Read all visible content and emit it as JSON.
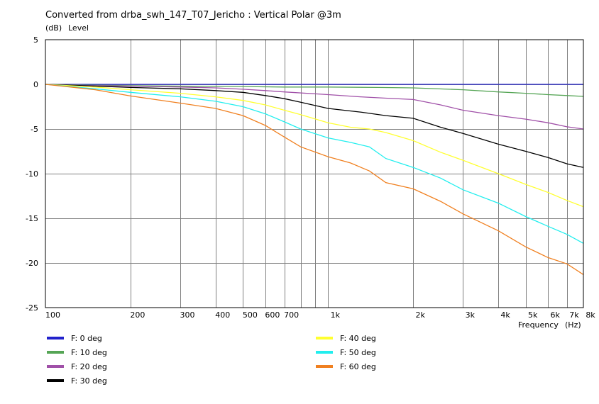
{
  "chart_data": {
    "type": "line",
    "title": "Converted from drba_swh_147_T07_Jericho : Vertical Polar @3m",
    "ylabel_units": "(dB)",
    "ylabel": "Level",
    "xlabel": "Frequency",
    "xlabel_units": "(Hz)",
    "x_scale": "log",
    "xlim": [
      100,
      8000
    ],
    "ylim": [
      -25,
      5
    ],
    "grid": true,
    "legend_position": "bottom",
    "y_ticks": [
      5,
      0,
      -5,
      -10,
      -15,
      -20,
      -25
    ],
    "x_ticks": [
      {
        "value": 100,
        "label": "100"
      },
      {
        "value": 200,
        "label": "200"
      },
      {
        "value": 300,
        "label": "300"
      },
      {
        "value": 400,
        "label": "400"
      },
      {
        "value": 500,
        "label": "500"
      },
      {
        "value": 600,
        "label": "600"
      },
      {
        "value": 700,
        "label": "700"
      },
      {
        "value": 1000,
        "label": "1k"
      },
      {
        "value": 2000,
        "label": "2k"
      },
      {
        "value": 3000,
        "label": "3k"
      },
      {
        "value": 4000,
        "label": "4k"
      },
      {
        "value": 5000,
        "label": "5k"
      },
      {
        "value": 6000,
        "label": "6k"
      },
      {
        "value": 7000,
        "label": "7k"
      },
      {
        "value": 8000,
        "label": "8k"
      }
    ],
    "x_grid": [
      200,
      300,
      400,
      500,
      600,
      700,
      800,
      900,
      1000,
      2000,
      3000,
      4000,
      5000,
      6000,
      7000
    ],
    "series": [
      {
        "name": "F: 0 deg",
        "color": "#2222cc",
        "points": [
          [
            100,
            0
          ],
          [
            8000,
            0
          ]
        ]
      },
      {
        "name": "F: 10 deg",
        "color": "#55a555",
        "points": [
          [
            100,
            0
          ],
          [
            150,
            -0.1
          ],
          [
            200,
            -0.15
          ],
          [
            300,
            -0.2
          ],
          [
            500,
            -0.25
          ],
          [
            700,
            -0.3
          ],
          [
            1000,
            -0.3
          ],
          [
            1500,
            -0.35
          ],
          [
            2000,
            -0.4
          ],
          [
            3000,
            -0.6
          ],
          [
            4000,
            -0.85
          ],
          [
            5000,
            -1.0
          ],
          [
            6000,
            -1.15
          ],
          [
            7000,
            -1.25
          ],
          [
            8000,
            -1.35
          ]
        ]
      },
      {
        "name": "F: 20 deg",
        "color": "#a050a8",
        "points": [
          [
            100,
            0
          ],
          [
            150,
            -0.15
          ],
          [
            200,
            -0.2
          ],
          [
            300,
            -0.3
          ],
          [
            400,
            -0.4
          ],
          [
            500,
            -0.55
          ],
          [
            600,
            -0.7
          ],
          [
            700,
            -0.85
          ],
          [
            1000,
            -1.15
          ],
          [
            1300,
            -1.4
          ],
          [
            1600,
            -1.55
          ],
          [
            2000,
            -1.7
          ],
          [
            2500,
            -2.3
          ],
          [
            3000,
            -2.9
          ],
          [
            4000,
            -3.5
          ],
          [
            5000,
            -3.9
          ],
          [
            6000,
            -4.3
          ],
          [
            7000,
            -4.75
          ],
          [
            8000,
            -5.0
          ]
        ]
      },
      {
        "name": "F: 30 deg",
        "color": "#000000",
        "points": [
          [
            100,
            0
          ],
          [
            150,
            -0.2
          ],
          [
            200,
            -0.35
          ],
          [
            300,
            -0.5
          ],
          [
            400,
            -0.7
          ],
          [
            500,
            -0.9
          ],
          [
            600,
            -1.25
          ],
          [
            700,
            -1.6
          ],
          [
            800,
            -2.0
          ],
          [
            1000,
            -2.7
          ],
          [
            1300,
            -3.1
          ],
          [
            1600,
            -3.5
          ],
          [
            2000,
            -3.8
          ],
          [
            2500,
            -4.8
          ],
          [
            3000,
            -5.5
          ],
          [
            4000,
            -6.7
          ],
          [
            5000,
            -7.5
          ],
          [
            6000,
            -8.2
          ],
          [
            7000,
            -8.9
          ],
          [
            8000,
            -9.3
          ]
        ]
      },
      {
        "name": "F: 40 deg",
        "color": "#ffff30",
        "points": [
          [
            100,
            0
          ],
          [
            150,
            -0.3
          ],
          [
            200,
            -0.6
          ],
          [
            300,
            -1.0
          ],
          [
            400,
            -1.4
          ],
          [
            500,
            -1.8
          ],
          [
            600,
            -2.3
          ],
          [
            700,
            -2.9
          ],
          [
            800,
            -3.4
          ],
          [
            1000,
            -4.3
          ],
          [
            1200,
            -4.8
          ],
          [
            1400,
            -5.0
          ],
          [
            1600,
            -5.4
          ],
          [
            2000,
            -6.3
          ],
          [
            2500,
            -7.6
          ],
          [
            3000,
            -8.5
          ],
          [
            4000,
            -10.0
          ],
          [
            5000,
            -11.2
          ],
          [
            6000,
            -12.1
          ],
          [
            7000,
            -13.0
          ],
          [
            8000,
            -13.7
          ]
        ]
      },
      {
        "name": "F: 50 deg",
        "color": "#22eeee",
        "points": [
          [
            100,
            0
          ],
          [
            150,
            -0.5
          ],
          [
            200,
            -0.9
          ],
          [
            300,
            -1.4
          ],
          [
            400,
            -1.9
          ],
          [
            500,
            -2.5
          ],
          [
            600,
            -3.3
          ],
          [
            700,
            -4.2
          ],
          [
            800,
            -5.0
          ],
          [
            1000,
            -6.0
          ],
          [
            1200,
            -6.5
          ],
          [
            1400,
            -7.0
          ],
          [
            1600,
            -8.3
          ],
          [
            2000,
            -9.3
          ],
          [
            2500,
            -10.5
          ],
          [
            3000,
            -11.8
          ],
          [
            4000,
            -13.3
          ],
          [
            5000,
            -14.8
          ],
          [
            6000,
            -15.9
          ],
          [
            7000,
            -16.8
          ],
          [
            8000,
            -17.8
          ]
        ]
      },
      {
        "name": "F: 60 deg",
        "color": "#f08020",
        "points": [
          [
            100,
            0
          ],
          [
            150,
            -0.6
          ],
          [
            200,
            -1.3
          ],
          [
            300,
            -2.1
          ],
          [
            400,
            -2.7
          ],
          [
            500,
            -3.5
          ],
          [
            600,
            -4.6
          ],
          [
            700,
            -5.9
          ],
          [
            800,
            -7.0
          ],
          [
            1000,
            -8.1
          ],
          [
            1200,
            -8.8
          ],
          [
            1400,
            -9.7
          ],
          [
            1600,
            -11.0
          ],
          [
            2000,
            -11.7
          ],
          [
            2500,
            -13.1
          ],
          [
            3000,
            -14.5
          ],
          [
            4000,
            -16.4
          ],
          [
            5000,
            -18.2
          ],
          [
            6000,
            -19.4
          ],
          [
            7000,
            -20.1
          ],
          [
            8000,
            -21.3
          ]
        ]
      }
    ]
  }
}
